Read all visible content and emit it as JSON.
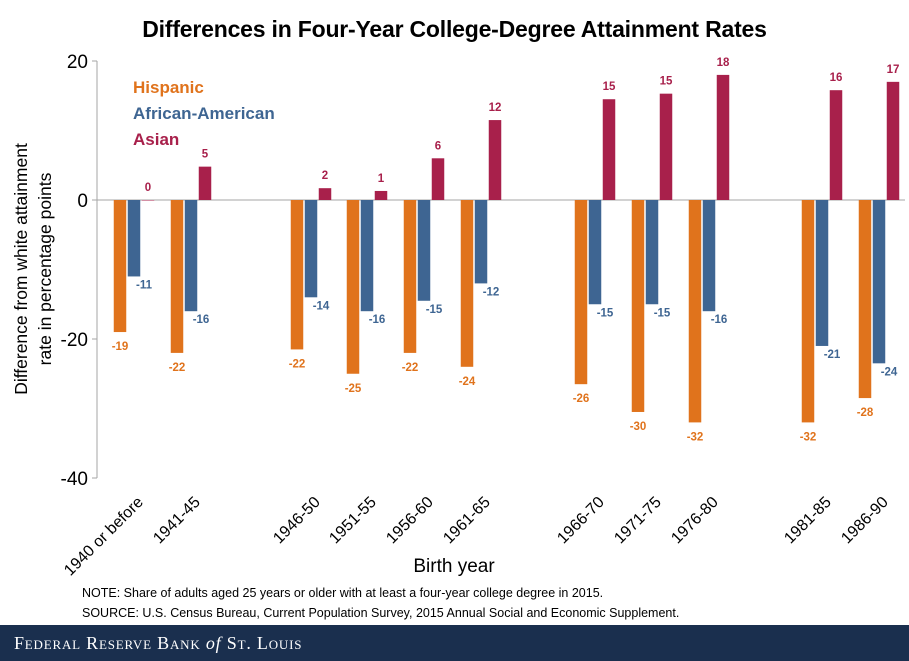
{
  "chart_data": {
    "type": "bar",
    "title": "Differences in Four-Year College-Degree Attainment Rates",
    "xlabel": "Birth year",
    "ylabel": "Difference from white attainment rate in percentage points",
    "ylabel_lines": [
      "Difference from white attainment",
      "rate in percentage points"
    ],
    "ylim": [
      -40,
      20
    ],
    "yticks": [
      20,
      0,
      -20,
      -40
    ],
    "legend_position": "top-left",
    "categories": [
      "1940 or before",
      "1941-45",
      "1946-50",
      "1951-55",
      "1956-60",
      "1961-65",
      "1966-70",
      "1971-75",
      "1976-80",
      "1981-85",
      "1986-90"
    ],
    "series": [
      {
        "name": "Hispanic",
        "color": "#e0731c",
        "values": [
          -19,
          -22,
          -21.5,
          -25,
          -22,
          -24,
          -26.5,
          -30.5,
          -32,
          -32,
          -28.5
        ],
        "labels": [
          "-19",
          "-22",
          "-22",
          "-25",
          "-22",
          "-24",
          "-26",
          "-30",
          "-32",
          "-32",
          "-28"
        ]
      },
      {
        "name": "African-American",
        "color": "#3e6592",
        "values": [
          -11,
          -16,
          -14,
          -16,
          -14.5,
          -12,
          -15,
          -15,
          -16,
          -21,
          -23.5
        ],
        "labels": [
          "-11",
          "-16",
          "-14",
          "-16",
          "-15",
          "-12",
          "-15",
          "-15",
          "-16",
          "-21",
          "-24"
        ]
      },
      {
        "name": "Asian",
        "color": "#a8204b",
        "values": [
          0,
          4.8,
          1.7,
          1.3,
          6,
          11.5,
          14.5,
          15.3,
          18,
          15.8,
          17
        ],
        "labels": [
          "0",
          "5",
          "2",
          "1",
          "6",
          "12",
          "15",
          "15",
          "18",
          "16",
          "17"
        ]
      }
    ]
  },
  "notes": {
    "note": "NOTE: Share of adults aged 25  years or older with at least a four-year college degree in 2015.",
    "source": "SOURCE: U.S. Census Bureau, Current Population Survey, 2015 Annual Social and Economic Supplement."
  },
  "footer": {
    "bank_part1": "Federal Reserve Bank",
    "bank_part2": "of",
    "bank_part3": "St. Louis"
  }
}
